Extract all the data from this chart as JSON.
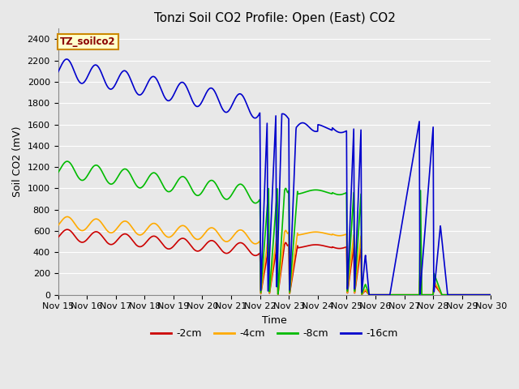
{
  "title": "Tonzi Soil CO2 Profile: Open (East) CO2",
  "ylabel": "Soil CO2 (mV)",
  "xlabel": "Time",
  "ylim": [
    0,
    2500
  ],
  "yticks": [
    0,
    200,
    400,
    600,
    800,
    1000,
    1200,
    1400,
    1600,
    1800,
    2000,
    2200,
    2400
  ],
  "xtick_labels": [
    "Nov 15",
    "Nov 16",
    "Nov 17",
    "Nov 18",
    "Nov 19",
    "Nov 20",
    "Nov 21",
    "Nov 22",
    "Nov 23",
    "Nov 24",
    "Nov 25",
    "Nov 26",
    "Nov 27",
    "Nov 28",
    "Nov 29",
    "Nov 30"
  ],
  "colors": {
    "2cm": "#cc0000",
    "4cm": "#ffaa00",
    "8cm": "#00bb00",
    "16cm": "#0000cc"
  },
  "background_color": "#e8e8e8",
  "grid_color": "#ffffff",
  "line_width": 1.2,
  "title_fontsize": 11,
  "axis_label_fontsize": 9,
  "tick_fontsize": 8,
  "legend_label_box": "TZ_soilco2",
  "legend_box_facecolor": "#ffffcc",
  "legend_box_edgecolor": "#cc8800"
}
